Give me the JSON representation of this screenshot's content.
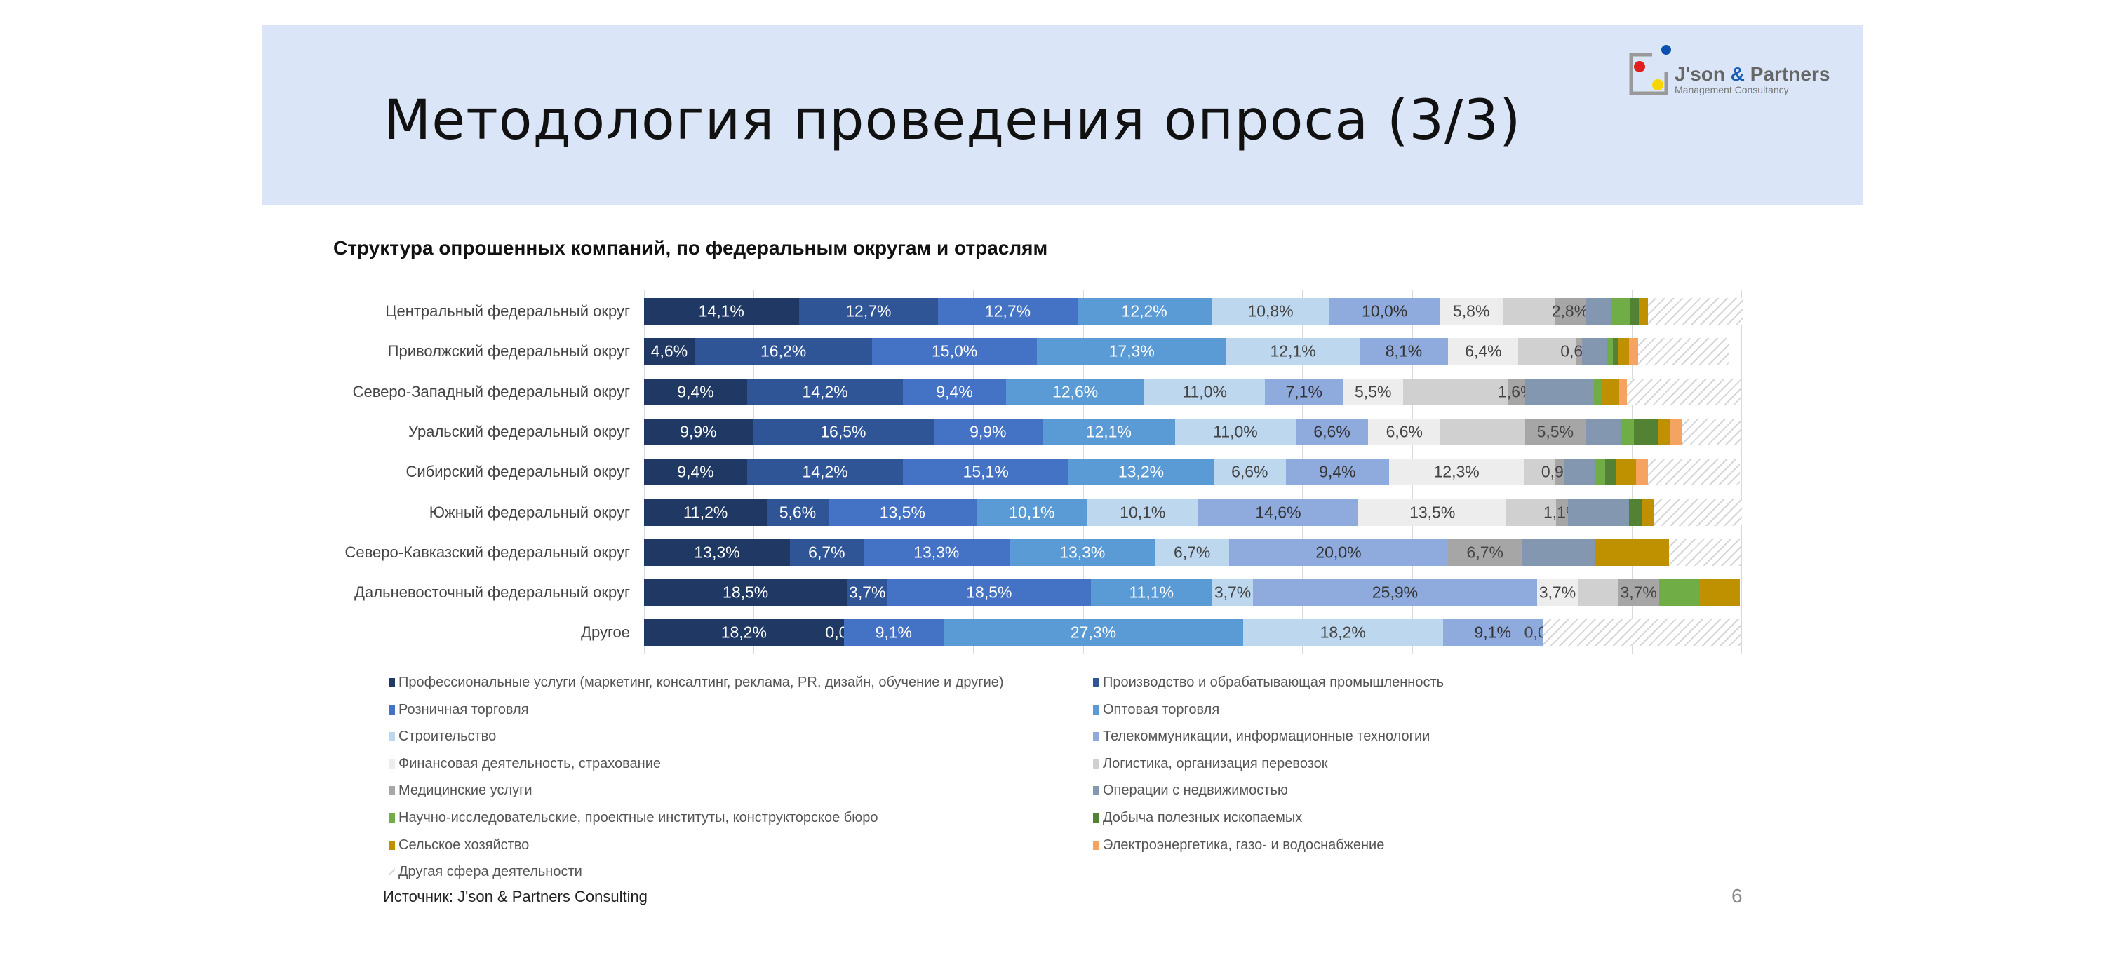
{
  "header": {
    "title": "Методология проведения опроса (3/3)",
    "logo_text": "J'son & Partners",
    "logo_subtext": "Management Consultancy"
  },
  "footer": {
    "source": "Источник: J'son & Partners Consulting",
    "page_number": "6"
  },
  "chart_data": {
    "type": "bar",
    "orientation": "horizontal",
    "stacked": "100%",
    "title": "Структура опрошенных компаний, по федеральным округам и отраслям",
    "xlim": [
      0,
      100
    ],
    "grid": "vertical",
    "legend_position": "bottom",
    "categories": [
      "Центральный федеральный округ",
      "Приволжский федеральный округ",
      "Северо-Западный федеральный округ",
      "Уральский федеральный округ",
      "Сибирский федеральный округ",
      "Южный федеральный округ",
      "Северо-Кавказский федеральный округ",
      "Дальневосточный федеральный округ",
      "Другое"
    ],
    "series": [
      {
        "name": "Профессиональные услуги (маркетинг, консалтинг, реклама, PR, дизайн, обучение и другие)",
        "color": "#1f3864",
        "text": "#fff",
        "values": [
          14.1,
          4.6,
          9.4,
          9.9,
          9.4,
          11.2,
          13.3,
          18.5,
          18.2
        ],
        "labels": [
          "14,1%",
          "4,6%",
          "9,4%",
          "9,9%",
          "9,4%",
          "11,2%",
          "13,3%",
          "18,5%",
          "18,2%"
        ]
      },
      {
        "name": "Производство и обрабатывающая промышленность",
        "color": "#2f5597",
        "text": "#fff",
        "values": [
          12.7,
          16.2,
          14.2,
          16.5,
          14.2,
          5.6,
          6.7,
          3.7,
          0.0
        ],
        "labels": [
          "12,7%",
          "16,2%",
          "14,2%",
          "16,5%",
          "14,2%",
          "5,6%",
          "6,7%",
          "3,7%",
          "0,0%"
        ]
      },
      {
        "name": "Розничная торговля",
        "color": "#4472c4",
        "text": "#fff",
        "values": [
          12.7,
          15.0,
          9.4,
          9.9,
          15.1,
          13.5,
          13.3,
          18.5,
          9.1
        ],
        "labels": [
          "12,7%",
          "15,0%",
          "9,4%",
          "9,9%",
          "15,1%",
          "13,5%",
          "13,3%",
          "18,5%",
          "9,1%"
        ]
      },
      {
        "name": "Оптовая торговля",
        "color": "#5b9bd5",
        "text": "#fff",
        "values": [
          12.2,
          17.3,
          12.6,
          12.1,
          13.2,
          10.1,
          13.3,
          11.1,
          27.3
        ],
        "labels": [
          "12,2%",
          "17,3%",
          "12,6%",
          "12,1%",
          "13,2%",
          "10,1%",
          "13,3%",
          "11,1%",
          "27,3%"
        ]
      },
      {
        "name": "Строительство",
        "color": "#bdd7ee",
        "text": "#444",
        "values": [
          10.8,
          12.1,
          11.0,
          11.0,
          6.6,
          10.1,
          6.7,
          3.7,
          18.2
        ],
        "labels": [
          "10,8%",
          "12,1%",
          "11,0%",
          "11,0%",
          "6,6%",
          "10,1%",
          "6,7%",
          "3,7%",
          "18,2%"
        ]
      },
      {
        "name": "Телекоммуникации, информационные технологии",
        "color": "#8faadc",
        "text": "#333",
        "values": [
          10.0,
          8.1,
          7.1,
          6.6,
          9.4,
          14.6,
          20.0,
          25.9,
          9.1
        ],
        "labels": [
          "10,0%",
          "8,1%",
          "7,1%",
          "6,6%",
          "9,4%",
          "14,6%",
          "20,0%",
          "25,9%",
          "9,1%"
        ]
      },
      {
        "name": "Финансовая деятельность, страхование",
        "color": "#ededed",
        "text": "#444",
        "values": [
          5.8,
          6.4,
          5.5,
          6.6,
          12.3,
          13.5,
          0,
          3.7,
          0.0
        ],
        "labels": [
          "5,8%",
          "6,4%",
          "5,5%",
          "6,6%",
          "12,3%",
          "13,5%",
          null,
          "3,7%",
          "0,0%"
        ]
      },
      {
        "name": "Логистика, организация перевозок",
        "color": "#d0d0d0",
        "text": "#444",
        "values": [
          4.7,
          5.2,
          9.5,
          7.7,
          2.8,
          4.5,
          0,
          3.7,
          0
        ],
        "labels": [
          null,
          null,
          null,
          null,
          null,
          null,
          null,
          null,
          null
        ]
      },
      {
        "name": "Медицинские услуги",
        "color": "#a6a6a6",
        "text": "#444",
        "values": [
          2.8,
          0.6,
          1.6,
          5.5,
          0.9,
          1.1,
          6.7,
          3.7,
          0
        ],
        "labels": [
          "2,8%",
          "0,6%",
          "1,6%",
          "5,5%",
          "0,9%",
          "1,1%",
          "6,7%",
          "3,7%",
          null
        ]
      },
      {
        "name": "Операции с недвижимостью",
        "color": "#8497b0",
        "text": "#fff",
        "values": [
          2.4,
          2.2,
          6.3,
          3.3,
          2.8,
          5.6,
          6.7,
          0,
          0
        ],
        "labels": [
          null,
          null,
          null,
          null,
          null,
          null,
          null,
          null,
          null
        ]
      },
      {
        "name": "Научно-исследовательские, проектные институты, конструкторское бюро",
        "color": "#70ad47",
        "text": "#fff",
        "values": [
          1.7,
          0.6,
          0.7,
          1.1,
          0.9,
          0,
          0,
          3.7,
          0
        ],
        "labels": [
          null,
          null,
          null,
          null,
          null,
          null,
          null,
          null,
          null
        ]
      },
      {
        "name": "Добыча полезных ископаемых",
        "color": "#548235",
        "text": "#fff",
        "values": [
          0.8,
          0.5,
          0,
          2.2,
          1.0,
          1.1,
          0,
          0,
          0
        ],
        "labels": [
          null,
          null,
          null,
          null,
          null,
          null,
          null,
          null,
          null
        ]
      },
      {
        "name": "Сельское хозяйство",
        "color": "#bf9000",
        "text": "#fff",
        "values": [
          0.8,
          1.0,
          1.6,
          1.1,
          1.8,
          1.1,
          6.7,
          3.7,
          0
        ],
        "labels": [
          null,
          null,
          null,
          null,
          null,
          null,
          null,
          null,
          null
        ]
      },
      {
        "name": "Электроэнергетика, газо- и водоснабжение",
        "color": "#f4a460",
        "text": "#fff",
        "values": [
          0,
          0.8,
          0.7,
          1.1,
          1.1,
          0,
          0,
          0,
          0
        ],
        "labels": [
          null,
          null,
          null,
          null,
          null,
          null,
          null,
          null,
          null
        ]
      },
      {
        "name": "Другая сфера деятельности",
        "color": "hatched",
        "text": "#444",
        "values": [
          8.7,
          8.3,
          10.4,
          5.4,
          8.4,
          8.1,
          6.6,
          0,
          18.1
        ],
        "labels": [
          null,
          null,
          null,
          null,
          null,
          null,
          null,
          null,
          null
        ]
      }
    ]
  }
}
